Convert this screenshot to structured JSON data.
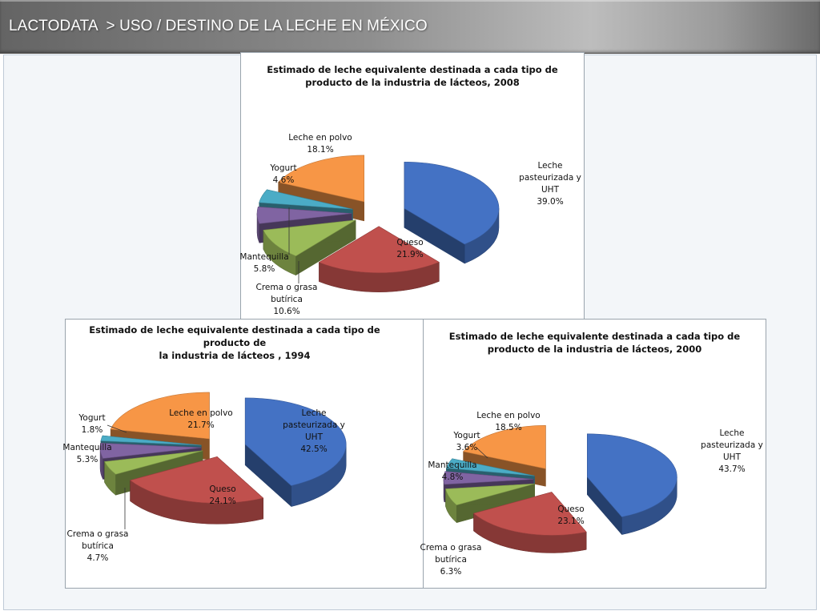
{
  "header": {
    "section": "LACTODATA",
    "separator": ">",
    "title": "USO / DESTINO DE LA LECHE EN MÉXICO"
  },
  "colors": {
    "leche_pasteurizada": "#4472c4",
    "queso": "#c0504d",
    "crema": "#9bbb59",
    "mantequilla": "#8064a2",
    "yogurt": "#4bacc6",
    "leche_polvo": "#f79646"
  },
  "chart_data": [
    {
      "type": "pie",
      "title": "Estimado de leche equivalente destinada a cada tipo de producto de la industria de lácteos, 2008",
      "title_lines": [
        "Estimado de leche equivalente destinada a cada tipo de",
        "producto de la industria de lácteos, 2008"
      ],
      "slices": [
        {
          "label_lines": [
            "Leche",
            "pasteurizada y",
            "UHT"
          ],
          "value": 39.0,
          "value_label": "39.0%",
          "color": "#4472c4"
        },
        {
          "label_lines": [
            "Queso"
          ],
          "value": 21.9,
          "value_label": "21.9%",
          "color": "#c0504d"
        },
        {
          "label_lines": [
            "Crema o grasa",
            "butírica"
          ],
          "value": 10.6,
          "value_label": "10.6%",
          "color": "#9bbb59"
        },
        {
          "label_lines": [
            "Mantequilla"
          ],
          "value": 5.8,
          "value_label": "5.8%",
          "color": "#8064a2"
        },
        {
          "label_lines": [
            "Yogurt"
          ],
          "value": 4.6,
          "value_label": "4.6%",
          "color": "#4bacc6"
        },
        {
          "label_lines": [
            "Leche en polvo"
          ],
          "value": 18.1,
          "value_label": "18.1%",
          "color": "#f79646"
        }
      ]
    },
    {
      "type": "pie",
      "title": "Estimado de leche equivalente destinada a cada tipo de producto de la industria de lácteos , 1994",
      "title_lines": [
        "Estimado de leche equivalente destinada a cada tipo de producto de",
        "la industria de lácteos , 1994"
      ],
      "slices": [
        {
          "label_lines": [
            "Leche",
            "pasteurizada y",
            "UHT"
          ],
          "value": 42.5,
          "value_label": "42.5%",
          "color": "#4472c4"
        },
        {
          "label_lines": [
            "Queso"
          ],
          "value": 24.1,
          "value_label": "24.1%",
          "color": "#c0504d"
        },
        {
          "label_lines": [
            "Crema o grasa",
            "butírica"
          ],
          "value": 4.7,
          "value_label": "4.7%",
          "color": "#9bbb59"
        },
        {
          "label_lines": [
            "Mantequilla"
          ],
          "value": 5.3,
          "value_label": "5.3%",
          "color": "#8064a2"
        },
        {
          "label_lines": [
            "Yogurt"
          ],
          "value": 1.8,
          "value_label": "1.8%",
          "color": "#4bacc6"
        },
        {
          "label_lines": [
            "Leche en polvo"
          ],
          "value": 21.7,
          "value_label": "21.7%",
          "color": "#f79646"
        }
      ]
    },
    {
      "type": "pie",
      "title": "Estimado de leche equivalente destinada a cada tipo de producto de la industria de lácteos, 2000",
      "title_lines": [
        "Estimado de leche equivalente destinada a cada tipo de",
        "producto de la industria de lácteos, 2000"
      ],
      "slices": [
        {
          "label_lines": [
            "Leche",
            "pasteurizada y",
            "UHT"
          ],
          "value": 43.7,
          "value_label": "43.7%",
          "color": "#4472c4"
        },
        {
          "label_lines": [
            "Queso"
          ],
          "value": 23.1,
          "value_label": "23.1%",
          "color": "#c0504d"
        },
        {
          "label_lines": [
            "Crema o grasa",
            "butírica"
          ],
          "value": 6.3,
          "value_label": "6.3%",
          "color": "#9bbb59"
        },
        {
          "label_lines": [
            "Mantequilla"
          ],
          "value": 4.8,
          "value_label": "4.8%",
          "color": "#8064a2"
        },
        {
          "label_lines": [
            "Yogurt"
          ],
          "value": 3.6,
          "value_label": "3.6%",
          "color": "#4bacc6"
        },
        {
          "label_lines": [
            "Leche en polvo"
          ],
          "value": 18.5,
          "value_label": "18.5%",
          "color": "#f79646"
        }
      ]
    }
  ]
}
